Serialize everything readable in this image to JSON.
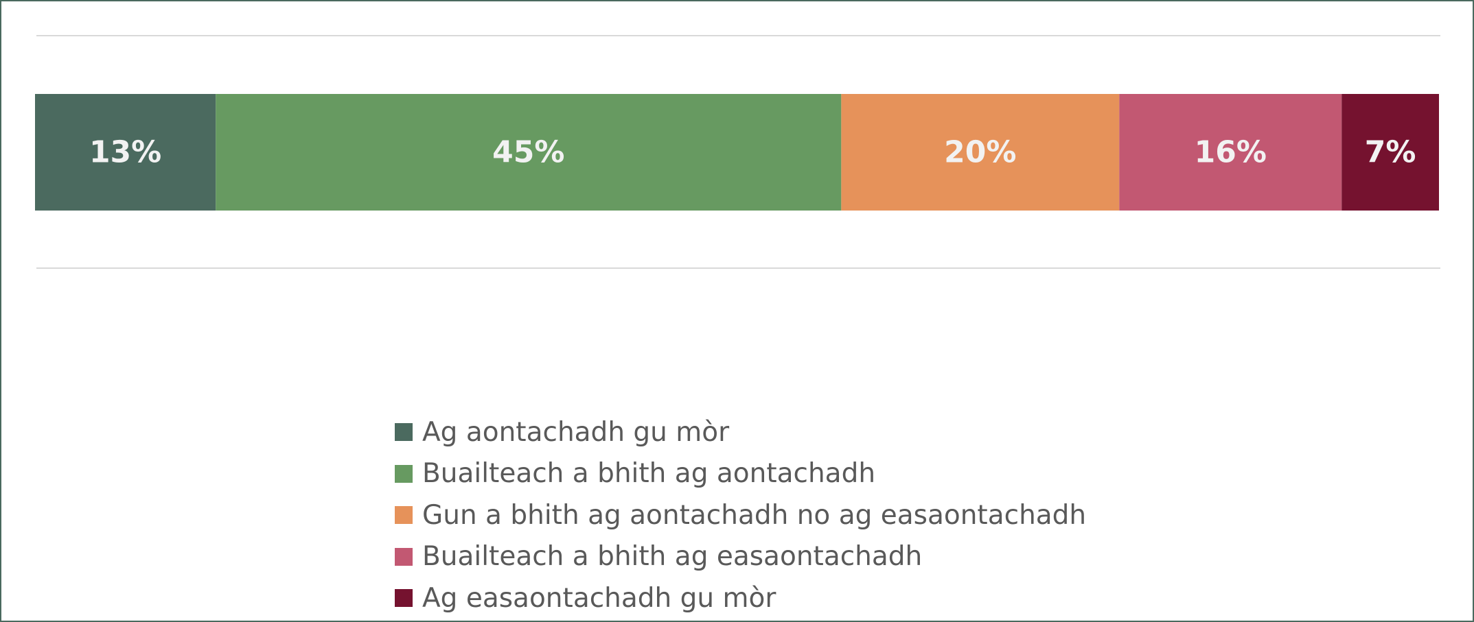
{
  "chart_data": {
    "type": "bar",
    "orientation": "horizontal-stacked-100",
    "categories": [
      ""
    ],
    "series": [
      {
        "name": "Ag aontachadh gu mòr",
        "values": [
          13
        ],
        "label": "13%",
        "color": "#4b6a5f"
      },
      {
        "name": "Buailteach a bhith ag aontachadh",
        "values": [
          45
        ],
        "label": "45%",
        "color": "#679a61"
      },
      {
        "name": "Gun a bhith ag aontachadh no ag easaontachadh",
        "values": [
          20
        ],
        "label": "20%",
        "color": "#e6925a"
      },
      {
        "name": "Buailteach a bhith ag easaontachadh",
        "values": [
          16
        ],
        "label": "16%",
        "color": "#c25872"
      },
      {
        "name": "Ag easaontachadh gu mòr",
        "values": [
          7
        ],
        "label": "7%",
        "color": "#75122f"
      }
    ],
    "xlim": [
      0,
      101
    ],
    "data_label_color": "#f2f2f2",
    "grid": true,
    "legend_position": "bottom-center"
  }
}
